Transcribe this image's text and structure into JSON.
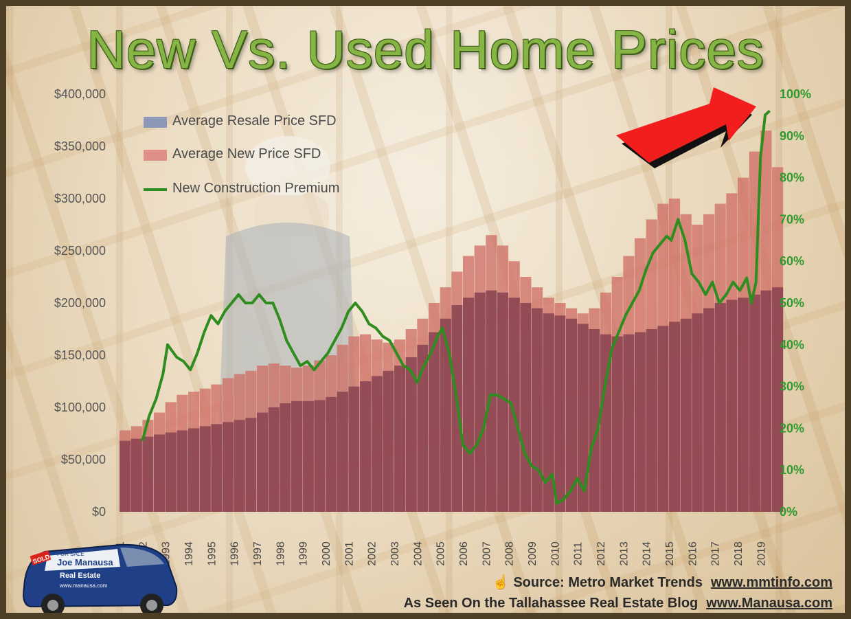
{
  "title": "New Vs. Used Home Prices",
  "legend": {
    "resale": "Average Resale Price SFD",
    "new": "Average New Price SFD",
    "premium": "New Construction Premium"
  },
  "footer": {
    "source_label": "Source: Metro Market Trends",
    "source_url": "www.mmtinfo.com",
    "blog_label": "As Seen On the Tallahassee Real Estate Blog",
    "blog_url": "www.Manausa.com"
  },
  "car_branding": {
    "sold": "SOLD",
    "for_sale": "FOR SALE",
    "brand": "Joe Manausa",
    "sub": "Real Estate",
    "site": "www.manausa.com"
  },
  "colors": {
    "resale": "#8e4652",
    "new": "#cf6f66",
    "premium": "#2f8d1f",
    "title": "#86b545",
    "right_axis": "#2e9a2e",
    "arrow": "#f21e1e"
  },
  "icons": {
    "source": "pointing-hand-icon",
    "arrow": "red-arrow-icon"
  },
  "chart_data": {
    "type": "bar",
    "title": "New Vs. Used Home Prices",
    "x_label": "",
    "y_label": "",
    "y_ticks": [
      "$0",
      "$50,000",
      "$100,000",
      "$150,000",
      "$200,000",
      "$250,000",
      "$300,000",
      "$350,000",
      "$400,000"
    ],
    "y_lim": [
      0,
      400000
    ],
    "y2_ticks": [
      "0%",
      "10%",
      "20%",
      "30%",
      "40%",
      "50%",
      "60%",
      "70%",
      "80%",
      "90%",
      "100%"
    ],
    "y2_lim": [
      0,
      1.0
    ],
    "x_ticks": [
      "1991",
      "1992",
      "1993",
      "1994",
      "1995",
      "1996",
      "1997",
      "1998",
      "1999",
      "2000",
      "2001",
      "2002",
      "2003",
      "2004",
      "2005",
      "2006",
      "2007",
      "2008",
      "2009",
      "2010",
      "2011",
      "2012",
      "2013",
      "2014",
      "2015",
      "2016",
      "2017",
      "2018",
      "2019"
    ],
    "x_range": [
      1991.0,
      2019.5
    ],
    "legend_position": "top-left",
    "series": [
      {
        "name": "Average Resale Price SFD",
        "type": "bar",
        "axis": "left",
        "x": [
          1991.0,
          1991.5,
          1992.0,
          1992.5,
          1993.0,
          1993.5,
          1994.0,
          1994.5,
          1995.0,
          1995.5,
          1996.0,
          1996.5,
          1997.0,
          1997.5,
          1998.0,
          1998.5,
          1999.0,
          1999.5,
          2000.0,
          2000.5,
          2001.0,
          2001.5,
          2002.0,
          2002.5,
          2003.0,
          2003.5,
          2004.0,
          2004.5,
          2005.0,
          2005.5,
          2006.0,
          2006.5,
          2007.0,
          2007.5,
          2008.0,
          2008.5,
          2009.0,
          2009.5,
          2010.0,
          2010.5,
          2011.0,
          2011.5,
          2012.0,
          2012.5,
          2013.0,
          2013.5,
          2014.0,
          2014.5,
          2015.0,
          2015.5,
          2016.0,
          2016.5,
          2017.0,
          2017.5,
          2018.0,
          2018.5,
          2019.0,
          2019.5
        ],
        "values": [
          68000,
          70000,
          72000,
          74000,
          76000,
          78000,
          80000,
          82000,
          84000,
          86000,
          88000,
          90000,
          95000,
          100000,
          104000,
          106000,
          106000,
          107000,
          110000,
          115000,
          120000,
          125000,
          130000,
          135000,
          140000,
          148000,
          160000,
          172000,
          185000,
          198000,
          205000,
          210000,
          212000,
          210000,
          205000,
          200000,
          195000,
          190000,
          188000,
          185000,
          180000,
          175000,
          170000,
          168000,
          170000,
          172000,
          175000,
          178000,
          182000,
          185000,
          190000,
          195000,
          200000,
          203000,
          205000,
          208000,
          212000,
          215000
        ]
      },
      {
        "name": "Average New Price SFD",
        "type": "bar",
        "axis": "left",
        "x": [
          1991.0,
          1991.5,
          1992.0,
          1992.5,
          1993.0,
          1993.5,
          1994.0,
          1994.5,
          1995.0,
          1995.5,
          1996.0,
          1996.5,
          1997.0,
          1997.5,
          1998.0,
          1998.5,
          1999.0,
          1999.5,
          2000.0,
          2000.5,
          2001.0,
          2001.5,
          2002.0,
          2002.5,
          2003.0,
          2003.5,
          2004.0,
          2004.5,
          2005.0,
          2005.5,
          2006.0,
          2006.5,
          2007.0,
          2007.5,
          2008.0,
          2008.5,
          2009.0,
          2009.5,
          2010.0,
          2010.5,
          2011.0,
          2011.5,
          2012.0,
          2012.5,
          2013.0,
          2013.5,
          2014.0,
          2014.5,
          2015.0,
          2015.5,
          2016.0,
          2016.5,
          2017.0,
          2017.5,
          2018.0,
          2018.5,
          2019.0,
          2019.5
        ],
        "values": [
          78000,
          82000,
          88000,
          95000,
          105000,
          112000,
          115000,
          118000,
          122000,
          128000,
          132000,
          135000,
          140000,
          142000,
          140000,
          138000,
          140000,
          145000,
          150000,
          160000,
          168000,
          170000,
          165000,
          162000,
          165000,
          175000,
          185000,
          200000,
          215000,
          230000,
          245000,
          255000,
          265000,
          255000,
          240000,
          225000,
          215000,
          205000,
          200000,
          195000,
          190000,
          195000,
          210000,
          225000,
          245000,
          262000,
          280000,
          295000,
          300000,
          285000,
          275000,
          285000,
          295000,
          305000,
          320000,
          345000,
          365000,
          330000
        ]
      },
      {
        "name": "New Construction Premium",
        "type": "line",
        "axis": "right",
        "x": [
          1992.0,
          1992.3,
          1992.6,
          1992.9,
          1993.1,
          1993.5,
          1993.8,
          1994.1,
          1994.4,
          1994.7,
          1995.0,
          1995.3,
          1995.6,
          1995.9,
          1996.2,
          1996.5,
          1996.8,
          1997.1,
          1997.4,
          1997.7,
          1998.0,
          1998.3,
          1998.6,
          1998.9,
          1999.2,
          1999.5,
          1999.8,
          2000.1,
          2000.4,
          2000.7,
          2001.0,
          2001.3,
          2001.6,
          2001.9,
          2002.2,
          2002.5,
          2002.8,
          2003.1,
          2003.4,
          2003.7,
          2004.0,
          2004.3,
          2004.6,
          2004.9,
          2005.1,
          2005.4,
          2005.7,
          2006.0,
          2006.3,
          2006.6,
          2006.9,
          2007.2,
          2007.5,
          2007.8,
          2008.1,
          2008.4,
          2008.7,
          2009.0,
          2009.3,
          2009.6,
          2009.9,
          2010.1,
          2010.4,
          2010.7,
          2011.0,
          2011.3,
          2011.6,
          2011.9,
          2012.2,
          2012.5,
          2012.8,
          2013.1,
          2013.4,
          2013.7,
          2014.0,
          2014.3,
          2014.6,
          2014.9,
          2015.1,
          2015.4,
          2015.7,
          2016.0,
          2016.3,
          2016.6,
          2016.9,
          2017.2,
          2017.5,
          2017.8,
          2018.1,
          2018.4,
          2018.6,
          2018.8,
          2019.0,
          2019.2,
          2019.4
        ],
        "values": [
          0.17,
          0.23,
          0.27,
          0.33,
          0.4,
          0.37,
          0.36,
          0.34,
          0.38,
          0.43,
          0.47,
          0.45,
          0.48,
          0.5,
          0.52,
          0.5,
          0.5,
          0.52,
          0.5,
          0.5,
          0.46,
          0.41,
          0.38,
          0.35,
          0.36,
          0.34,
          0.36,
          0.38,
          0.41,
          0.44,
          0.48,
          0.5,
          0.48,
          0.45,
          0.44,
          0.42,
          0.41,
          0.38,
          0.35,
          0.34,
          0.31,
          0.35,
          0.38,
          0.42,
          0.44,
          0.38,
          0.28,
          0.16,
          0.14,
          0.16,
          0.2,
          0.28,
          0.28,
          0.27,
          0.26,
          0.2,
          0.14,
          0.11,
          0.1,
          0.07,
          0.09,
          0.02,
          0.03,
          0.05,
          0.08,
          0.05,
          0.15,
          0.2,
          0.3,
          0.39,
          0.43,
          0.47,
          0.5,
          0.53,
          0.58,
          0.62,
          0.64,
          0.66,
          0.65,
          0.7,
          0.65,
          0.57,
          0.55,
          0.52,
          0.55,
          0.5,
          0.52,
          0.55,
          0.53,
          0.56,
          0.5,
          0.55,
          0.85,
          0.95,
          0.96
        ]
      }
    ]
  }
}
